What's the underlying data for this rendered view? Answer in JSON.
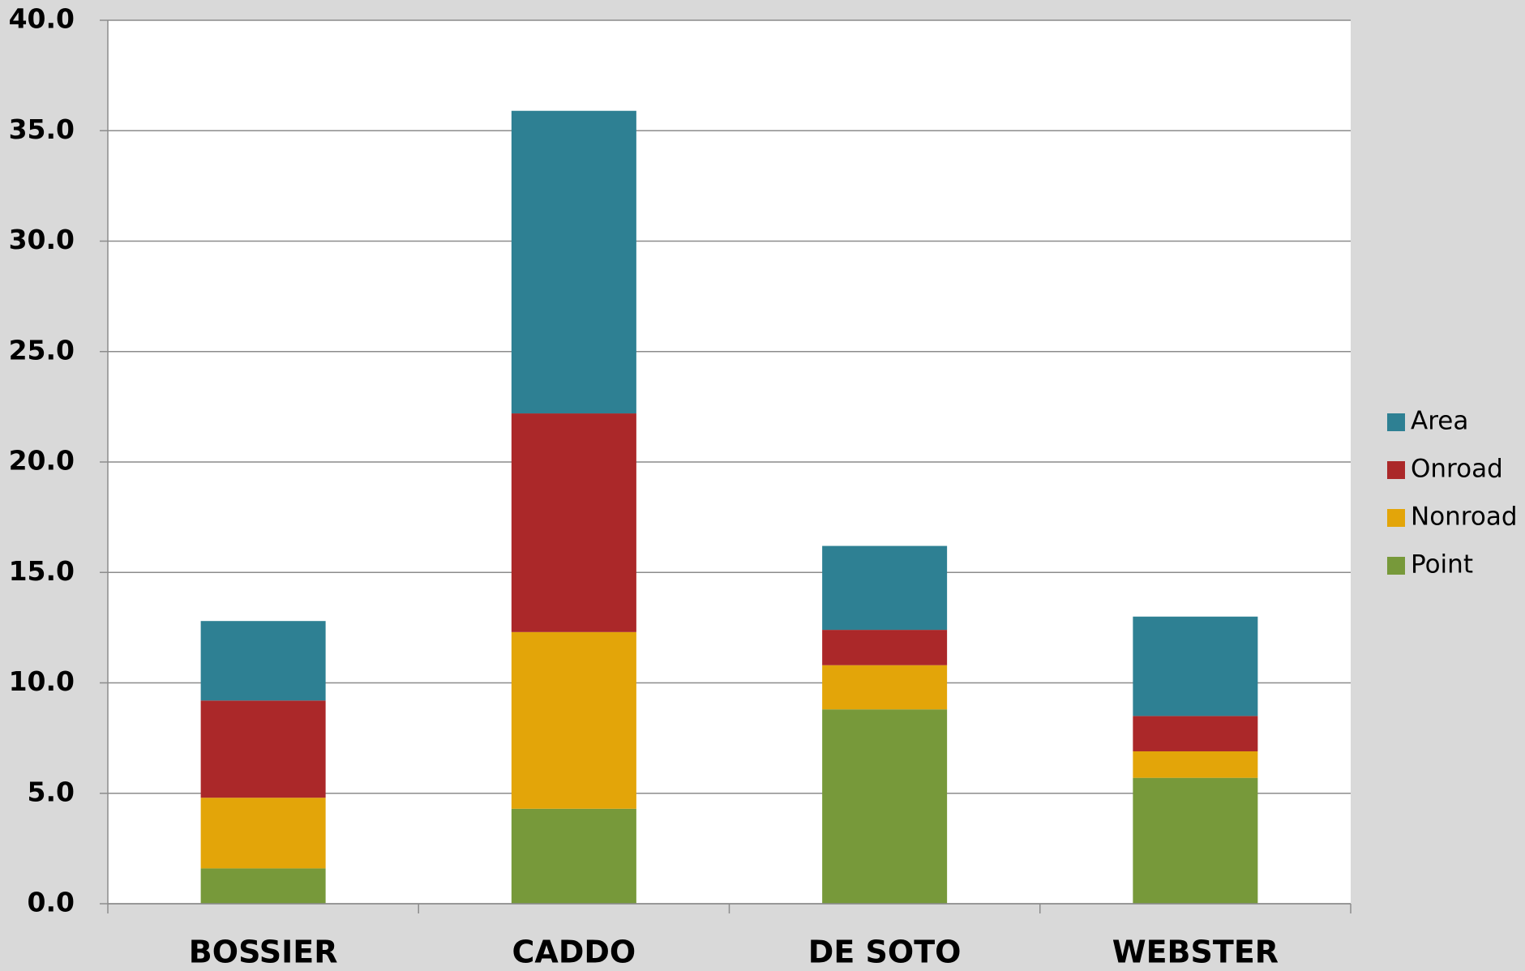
{
  "chart_data": {
    "type": "stacked_bar",
    "categories": [
      "BOSSIER",
      "CADDO",
      "DE SOTO",
      "WEBSTER"
    ],
    "series": [
      {
        "name": "Point",
        "color": "#77993a",
        "values": [
          1.6,
          4.3,
          8.8,
          5.7
        ]
      },
      {
        "name": "Nonroad",
        "color": "#e3a509",
        "values": [
          3.2,
          8.0,
          2.0,
          1.2
        ]
      },
      {
        "name": "Onroad",
        "color": "#ab2829",
        "values": [
          4.4,
          9.9,
          1.6,
          1.6
        ]
      },
      {
        "name": "Area",
        "color": "#2e8093",
        "values": [
          3.6,
          13.7,
          3.8,
          4.5
        ]
      }
    ],
    "ylim": [
      0,
      40
    ],
    "yticks": [
      {
        "value": 0,
        "label": "0.0"
      },
      {
        "value": 5,
        "label": "5.0"
      },
      {
        "value": 10,
        "label": "10.0"
      },
      {
        "value": 15,
        "label": "15.0"
      },
      {
        "value": 20,
        "label": "20.0"
      },
      {
        "value": 25,
        "label": "25.0"
      },
      {
        "value": 30,
        "label": "30.0"
      },
      {
        "value": 35,
        "label": "35.0"
      },
      {
        "value": 40,
        "label": "40.0"
      }
    ],
    "grid": true,
    "legend": "right"
  }
}
